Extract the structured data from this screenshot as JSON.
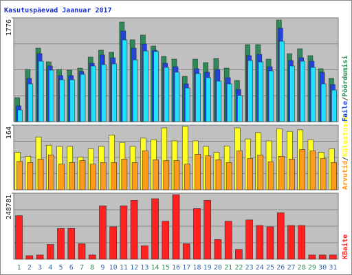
{
  "title": "Kasutuspäevad Jaanuar 2017",
  "legend_separator": "/",
  "chart_data": [
    {
      "type": "bar",
      "ylim": [
        0,
        1776
      ],
      "yticks": [
        1776
      ],
      "series": [
        {
          "name": "Pöördumisi",
          "color": "#2e8b57",
          "values": [
            412,
            894,
            1258,
            1023,
            894,
            882,
            917,
            1105,
            1223,
            1188,
            1705,
            1400,
            1482,
            1294,
            1117,
            1070,
            776,
            1070,
            1011,
            1082,
            917,
            706,
            1317,
            1317,
            1070,
            1740,
            1164,
            1247,
            1129,
            906,
            741
          ]
        },
        {
          "name": "Faile",
          "color": "#2244dd",
          "values": [
            270,
            741,
            1164,
            953,
            788,
            788,
            859,
            1000,
            1141,
            1094,
            1552,
            1258,
            1329,
            1223,
            1000,
            941,
            647,
            906,
            847,
            894,
            753,
            553,
            1129,
            1152,
            941,
            1600,
            1047,
            1094,
            1035,
            847,
            635
          ]
        },
        {
          "color": "#22e0ff",
          "values": [
            200,
            647,
            1035,
            882,
            717,
            717,
            811,
            953,
            976,
            988,
            1400,
            1058,
            1211,
            1200,
            929,
            847,
            576,
            823,
            753,
            694,
            647,
            447,
            1047,
            1023,
            870,
            1376,
            953,
            1035,
            929,
            647,
            541
          ]
        }
      ]
    },
    {
      "type": "bar",
      "ylim": [
        0,
        164
      ],
      "yticks": [
        164
      ],
      "series": [
        {
          "name": "Külastused",
          "color": "#ffff22",
          "values": [
            95,
            85,
            134,
            113,
            110,
            110,
            83,
            104,
            110,
            139,
            120,
            110,
            131,
            127,
            157,
            124,
            161,
            124,
            110,
            95,
            111,
            157,
            129,
            145,
            124,
            155,
            148,
            152,
            127,
            95,
            104
          ]
        },
        {
          "name": "Arvutid",
          "color": "#ff9a1a",
          "values": [
            72,
            69,
            78,
            88,
            65,
            69,
            74,
            65,
            69,
            69,
            78,
            69,
            99,
            76,
            74,
            74,
            65,
            90,
            86,
            76,
            69,
            99,
            79,
            88,
            71,
            85,
            78,
            102,
            99,
            79,
            69
          ]
        }
      ]
    },
    {
      "type": "bar",
      "ylim": [
        0,
        248781
      ],
      "yticks": [
        248781
      ],
      "categories": [
        "1",
        "2",
        "3",
        "4",
        "5",
        "6",
        "7",
        "8",
        "9",
        "10",
        "11",
        "12",
        "13",
        "14",
        "15",
        "16",
        "17",
        "18",
        "19",
        "20",
        "21",
        "22",
        "23",
        "24",
        "25",
        "26",
        "27",
        "28",
        "29",
        "30",
        "31"
      ],
      "category_colors": [
        "#2e8b57",
        "#3366aa",
        "#3366aa",
        "#3366aa",
        "#3366aa",
        "#3366aa",
        "#2e8b57",
        "#2e8b57",
        "#3366aa",
        "#3366aa",
        "#3366aa",
        "#3366aa",
        "#3366aa",
        "#2e8b57",
        "#2e8b57",
        "#3366aa",
        "#3366aa",
        "#3366aa",
        "#3366aa",
        "#3366aa",
        "#2e8b57",
        "#2e8b57",
        "#3366aa",
        "#3366aa",
        "#3366aa",
        "#3366aa",
        "#3366aa",
        "#2e8b57",
        "#2e8b57",
        "#3366aa",
        "#3366aa"
      ],
      "series": [
        {
          "name": "KBaite",
          "color": "#ff2020",
          "values": [
            164000,
            13200,
            15900,
            55600,
            116000,
            116000,
            58200,
            15900,
            201000,
            122000,
            201000,
            222000,
            50300,
            228000,
            143000,
            243000,
            58200,
            191000,
            222000,
            74100,
            143000,
            37000,
            148000,
            127000,
            122000,
            175000,
            127000,
            127000,
            15900,
            15900,
            15900
          ]
        }
      ]
    }
  ]
}
